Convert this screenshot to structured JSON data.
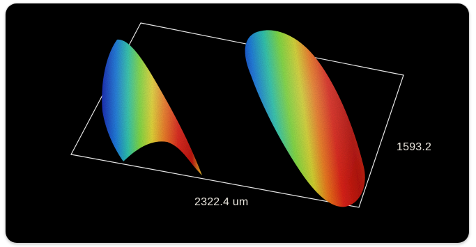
{
  "measurements": {
    "width_label": "2322.4 um",
    "height_label": "1593.2"
  },
  "colors": {
    "background": "#000000",
    "outline": "#e6e6e6",
    "label_text": "#e8e4dc",
    "height_map": [
      "#1c2fb8",
      "#1f7ee0",
      "#2ec8b0",
      "#7fdc3c",
      "#e6d72a",
      "#f07a1c",
      "#e02418",
      "#b8140f"
    ]
  }
}
